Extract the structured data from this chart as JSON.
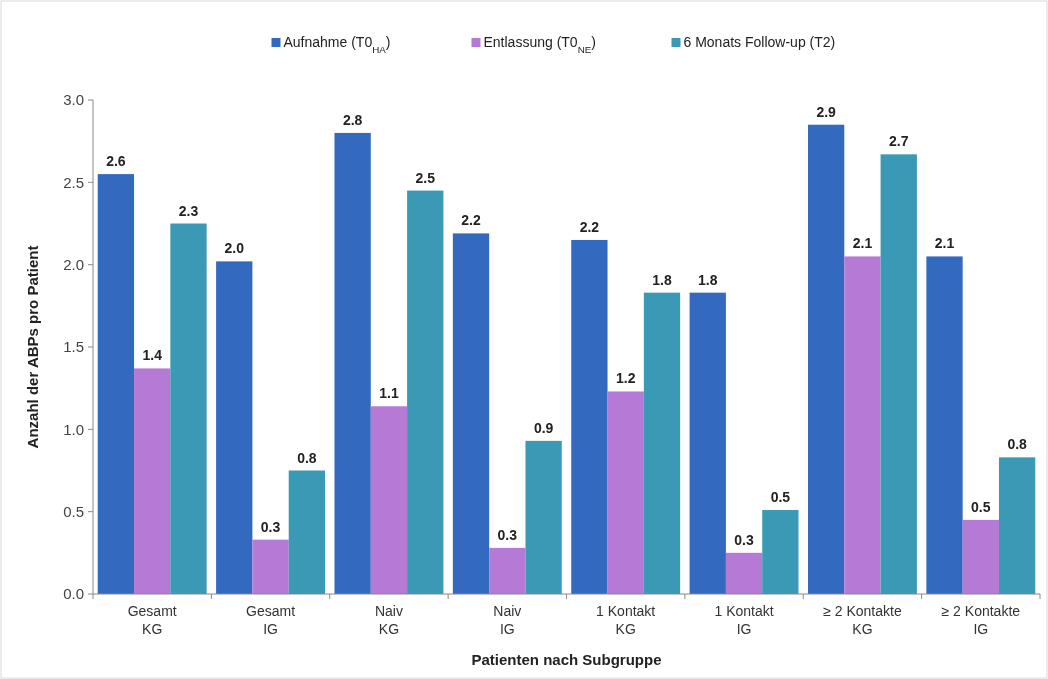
{
  "chart_data": {
    "type": "bar",
    "xlabel": "Patienten nach Subgruppe",
    "ylabel": "Anzahl der ABPs pro Patient",
    "categories": [
      "Gesamt\nKG",
      "Gesamt\nIG",
      "Naiv\nKG",
      "Naiv\nIG",
      "1 Kontakt\nKG",
      "1 Kontakt\nIG",
      "≥ 2 Kontakte\nKG",
      "≥ 2 Kontakte\nIG"
    ],
    "series": [
      {
        "name": "Aufnahme (T0$_{HA}$)",
        "color": "#336ac0",
        "values": [
          2.55,
          2.02,
          2.8,
          2.19,
          2.15,
          1.83,
          2.85,
          2.05
        ],
        "value_labels": [
          "2.6",
          "2.0",
          "2.8",
          "2.2",
          "2.2",
          "1.8",
          "2.9",
          "2.1"
        ]
      },
      {
        "name": "Entlassung (T0$_{NE}$)",
        "color": "#b57ad6",
        "values": [
          1.37,
          0.33,
          1.14,
          0.28,
          1.23,
          0.25,
          2.05,
          0.45
        ],
        "value_labels": [
          "1.4",
          "0.3",
          "1.1",
          "0.3",
          "1.2",
          "0.3",
          "2.1",
          "0.5"
        ]
      },
      {
        "name": "6 Monats Follow-up (T2)",
        "color": "#3a9ab5",
        "values": [
          2.25,
          0.75,
          2.45,
          0.93,
          1.83,
          0.51,
          2.67,
          0.83
        ],
        "value_labels": [
          "2.3",
          "0.8",
          "2.5",
          "0.9",
          "1.8",
          "0.5",
          "2.7",
          "0.8"
        ]
      }
    ],
    "ylim": [
      0,
      3
    ],
    "yticks": [
      "0.0",
      "0.5",
      "1.0",
      "1.5",
      "2.0",
      "2.5",
      "3.0"
    ],
    "legend": "top",
    "grid": false
  }
}
